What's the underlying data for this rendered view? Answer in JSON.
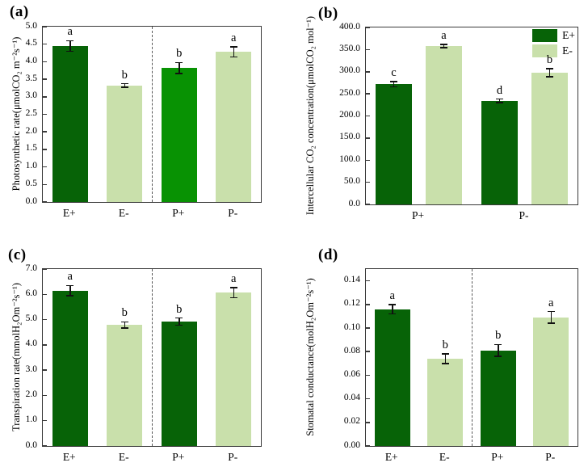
{
  "figure": {
    "background": "#ffffff",
    "colors": {
      "dark_green": "#076307",
      "light_green": "#c9e0ab",
      "bright_green": "#089203",
      "axis": "#3a3a3a",
      "error_bar": "#111111",
      "separator": "#5a5a5a",
      "text": "#000000"
    }
  },
  "chart_data": [
    {
      "id": "a",
      "type": "bar",
      "panel_label": "(a)",
      "title": "",
      "xlabel": "",
      "ylabel": "Photosynthetic rate(μmolCO₂ m⁻²s⁻¹)",
      "ylim": [
        0,
        5.0
      ],
      "grid": false,
      "ytick_values": [
        0,
        0.5,
        1.0,
        1.5,
        2.0,
        2.5,
        3.0,
        3.5,
        4.0,
        4.5,
        5.0
      ],
      "ytick_labels": [
        "0.0",
        "0.5",
        "1.0",
        "1.5",
        "2.0",
        "2.5",
        "3.0",
        "3.5",
        "4.0",
        "4.5",
        "5.0"
      ],
      "categories": [
        "E+",
        "E-",
        "P+",
        "P-"
      ],
      "values": [
        4.45,
        3.32,
        3.82,
        4.28
      ],
      "errors": [
        0.15,
        0.05,
        0.16,
        0.14
      ],
      "sig_letters": [
        "a",
        "b",
        "b",
        "a"
      ],
      "bar_colors": [
        "dark_green",
        "light_green",
        "bright_green",
        "light_green"
      ],
      "separator_between": [
        "E-",
        "P+"
      ],
      "legend": null
    },
    {
      "id": "b",
      "type": "grouped-bar",
      "panel_label": "(b)",
      "title": "",
      "xlabel": "",
      "ylabel": "Intercellular CO₂ concentration(μmolCO₂ mol⁻¹)",
      "ylim": [
        0,
        400.0
      ],
      "grid": false,
      "ytick_values": [
        0,
        50,
        100,
        150,
        200,
        250,
        300,
        350,
        400
      ],
      "ytick_labels": [
        "0.0",
        "50.0",
        "100.0",
        "150.0",
        "200.0",
        "250.0",
        "300.0",
        "350.0",
        "400.0"
      ],
      "categories": [
        "P+",
        "P-"
      ],
      "series": [
        {
          "name": "E+",
          "color": "dark_green",
          "values": [
            272,
            234
          ],
          "errors": [
            6,
            4
          ],
          "sig_letters": [
            "c",
            "d"
          ]
        },
        {
          "name": "E-",
          "color": "light_green",
          "values": [
            358,
            298
          ],
          "errors": [
            4,
            9
          ],
          "sig_letters": [
            "a",
            "b"
          ]
        }
      ],
      "separator_between": null,
      "legend": {
        "position": "top-right",
        "entries": [
          {
            "label": "E+",
            "color": "dark_green"
          },
          {
            "label": "E-",
            "color": "light_green"
          }
        ]
      }
    },
    {
      "id": "c",
      "type": "bar",
      "panel_label": "(c)",
      "title": "",
      "xlabel": "",
      "ylabel": "Transpiration rate(mmolH₂Om⁻²s⁻¹)",
      "ylim": [
        0,
        7.0
      ],
      "grid": false,
      "ytick_values": [
        0,
        1.0,
        2.0,
        3.0,
        4.0,
        5.0,
        6.0,
        7.0
      ],
      "ytick_labels": [
        "0.0",
        "1.0",
        "2.0",
        "3.0",
        "4.0",
        "5.0",
        "6.0",
        "7.0"
      ],
      "categories": [
        "E+",
        "E-",
        "P+",
        "P-"
      ],
      "values": [
        6.15,
        4.79,
        4.92,
        6.07
      ],
      "errors": [
        0.2,
        0.12,
        0.14,
        0.2
      ],
      "sig_letters": [
        "a",
        "b",
        "b",
        "a"
      ],
      "bar_colors": [
        "dark_green",
        "light_green",
        "dark_green",
        "light_green"
      ],
      "separator_between": [
        "E-",
        "P+"
      ],
      "legend": null
    },
    {
      "id": "d",
      "type": "bar",
      "panel_label": "(d)",
      "title": "",
      "xlabel": "",
      "ylabel": "Stomatal conductance(molH₂Om⁻²s⁻¹)",
      "ylim": [
        0,
        0.15
      ],
      "grid": false,
      "ytick_values": [
        0,
        0.02,
        0.04,
        0.06,
        0.08,
        0.1,
        0.12,
        0.14
      ],
      "ytick_labels": [
        "0.00",
        "0.02",
        "0.04",
        "0.06",
        "0.08",
        "0.10",
        "0.12",
        "0.14"
      ],
      "categories": [
        "E+",
        "E-",
        "P+",
        "P-"
      ],
      "values": [
        0.116,
        0.074,
        0.081,
        0.109
      ],
      "errors": [
        0.004,
        0.004,
        0.005,
        0.005
      ],
      "sig_letters": [
        "a",
        "b",
        "b",
        "a"
      ],
      "bar_colors": [
        "dark_green",
        "light_green",
        "dark_green",
        "light_green"
      ],
      "separator_between": [
        "E-",
        "P+"
      ],
      "legend": null
    }
  ]
}
